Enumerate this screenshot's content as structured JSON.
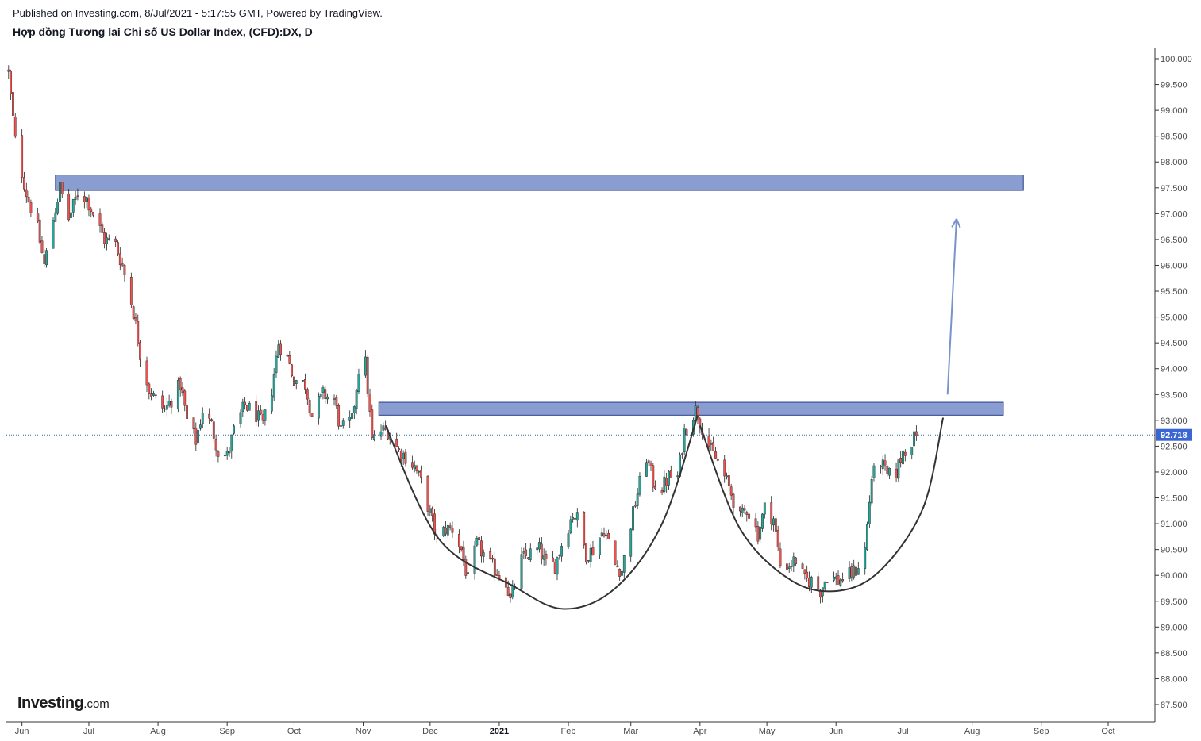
{
  "header": {
    "published": "Published on Investing.com, 8/Jul/2021 - 5:17:55 GMT, Powered by TradingView.",
    "title": "Hợp đồng Tương lai Chỉ số US Dollar Index, (CFD):DX, D"
  },
  "logo": {
    "main": "Investing",
    "suffix": ".com"
  },
  "colors": {
    "up": "#26a69a",
    "down": "#ef5350",
    "zone_fill": "#8a9dd0",
    "zone_stroke": "#2b3a8a",
    "arrow": "#7a93cc",
    "curve": "#333333",
    "price_badge": "#3a66d4",
    "price_line": "#2b6fa3",
    "axis": "#333333"
  },
  "chart_data": {
    "type": "candlestick",
    "title": "Hợp đồng Tương lai Chỉ số US Dollar Index, (CFD):DX, D",
    "x_labels": [
      {
        "label": "Jun",
        "date": "2020-06-01"
      },
      {
        "label": "Jul",
        "date": "2020-07-01"
      },
      {
        "label": "Aug",
        "date": "2020-08-01"
      },
      {
        "label": "Sep",
        "date": "2020-09-01"
      },
      {
        "label": "Oct",
        "date": "2020-10-01"
      },
      {
        "label": "Nov",
        "date": "2020-11-01"
      },
      {
        "label": "Dec",
        "date": "2020-12-01"
      },
      {
        "label": "2021",
        "date": "2021-01-01",
        "bold": true
      },
      {
        "label": "Feb",
        "date": "2021-02-01"
      },
      {
        "label": "Mar",
        "date": "2021-03-01"
      },
      {
        "label": "Apr",
        "date": "2021-04-01"
      },
      {
        "label": "May",
        "date": "2021-05-01"
      },
      {
        "label": "Jun",
        "date": "2021-06-01"
      },
      {
        "label": "Jul",
        "date": "2021-07-01"
      },
      {
        "label": "Aug",
        "date": "2021-08-01"
      },
      {
        "label": "Sep",
        "date": "2021-09-01"
      },
      {
        "label": "Oct",
        "date": "2021-10-01"
      }
    ],
    "x_range": [
      "2020-05-25",
      "2021-10-22"
    ],
    "y_ticks": [
      "100.000",
      "99.500",
      "99.000",
      "98.500",
      "98.000",
      "97.500",
      "97.000",
      "96.500",
      "96.000",
      "95.500",
      "95.000",
      "94.500",
      "94.000",
      "93.500",
      "93.000",
      "92.500",
      "92.000",
      "91.500",
      "91.000",
      "90.500",
      "90.000",
      "89.500",
      "89.000",
      "88.500",
      "88.000",
      "87.500"
    ],
    "y_range": [
      87.2,
      100.15
    ],
    "last_price": "92.718",
    "last_price_value": 92.718,
    "series_close": [
      [
        "2020-05-26",
        99.7
      ],
      [
        "2020-05-29",
        98.4
      ],
      [
        "2020-06-03",
        97.4
      ],
      [
        "2020-06-08",
        96.7
      ],
      [
        "2020-06-11",
        96.0
      ],
      [
        "2020-06-15",
        96.9
      ],
      [
        "2020-06-18",
        97.5
      ],
      [
        "2020-06-22",
        96.9
      ],
      [
        "2020-06-26",
        97.4
      ],
      [
        "2020-06-30",
        97.3
      ],
      [
        "2020-07-03",
        97.0
      ],
      [
        "2020-07-08",
        96.5
      ],
      [
        "2020-07-13",
        96.4
      ],
      [
        "2020-07-16",
        96.0
      ],
      [
        "2020-07-21",
        95.1
      ],
      [
        "2020-07-24",
        94.3
      ],
      [
        "2020-07-28",
        93.6
      ],
      [
        "2020-07-31",
        93.4
      ],
      [
        "2020-08-04",
        93.2
      ],
      [
        "2020-08-07",
        93.4
      ],
      [
        "2020-08-11",
        93.7
      ],
      [
        "2020-08-14",
        93.0
      ],
      [
        "2020-08-18",
        92.6
      ],
      [
        "2020-08-21",
        93.2
      ],
      [
        "2020-08-25",
        92.9
      ],
      [
        "2020-08-28",
        92.4
      ],
      [
        "2020-09-01",
        92.3
      ],
      [
        "2020-09-04",
        92.8
      ],
      [
        "2020-09-09",
        93.3
      ],
      [
        "2020-09-14",
        93.1
      ],
      [
        "2020-09-17",
        92.9
      ],
      [
        "2020-09-21",
        93.6
      ],
      [
        "2020-09-24",
        94.5
      ],
      [
        "2020-09-28",
        94.2
      ],
      [
        "2020-10-01",
        93.8
      ],
      [
        "2020-10-06",
        93.7
      ],
      [
        "2020-10-09",
        93.1
      ],
      [
        "2020-10-14",
        93.5
      ],
      [
        "2020-10-19",
        93.4
      ],
      [
        "2020-10-22",
        92.8
      ],
      [
        "2020-10-27",
        93.0
      ],
      [
        "2020-10-30",
        94.0
      ],
      [
        "2020-11-02",
        94.1
      ],
      [
        "2020-11-05",
        92.6
      ],
      [
        "2020-11-09",
        92.8
      ],
      [
        "2020-11-12",
        92.8
      ],
      [
        "2020-11-17",
        92.4
      ],
      [
        "2020-11-20",
        92.3
      ],
      [
        "2020-11-24",
        92.1
      ],
      [
        "2020-11-27",
        91.8
      ],
      [
        "2020-12-01",
        91.2
      ],
      [
        "2020-12-04",
        90.7
      ],
      [
        "2020-12-08",
        90.9
      ],
      [
        "2020-12-11",
        90.9
      ],
      [
        "2020-12-15",
        90.5
      ],
      [
        "2020-12-18",
        89.9
      ],
      [
        "2020-12-22",
        90.6
      ],
      [
        "2020-12-28",
        90.2
      ],
      [
        "2021-01-04",
        89.9
      ],
      [
        "2021-01-06",
        89.5
      ],
      [
        "2021-01-11",
        90.3
      ],
      [
        "2021-01-14",
        90.4
      ],
      [
        "2021-01-19",
        90.5
      ],
      [
        "2021-01-22",
        90.2
      ],
      [
        "2021-01-26",
        90.2
      ],
      [
        "2021-01-29",
        90.6
      ],
      [
        "2021-02-03",
        91.2
      ],
      [
        "2021-02-05",
        91.1
      ],
      [
        "2021-02-09",
        90.4
      ],
      [
        "2021-02-12",
        90.5
      ],
      [
        "2021-02-17",
        90.9
      ],
      [
        "2021-02-22",
        90.2
      ],
      [
        "2021-02-25",
        90.1
      ],
      [
        "2021-03-01",
        91.0
      ],
      [
        "2021-03-04",
        91.6
      ],
      [
        "2021-03-08",
        92.3
      ],
      [
        "2021-03-11",
        91.8
      ],
      [
        "2021-03-15",
        91.7
      ],
      [
        "2021-03-18",
        91.9
      ],
      [
        "2021-03-22",
        91.9
      ],
      [
        "2021-03-25",
        92.8
      ],
      [
        "2021-03-30",
        93.2
      ],
      [
        "2021-04-01",
        93.0
      ],
      [
        "2021-04-06",
        92.4
      ],
      [
        "2021-04-09",
        92.2
      ],
      [
        "2021-04-14",
        91.7
      ],
      [
        "2021-04-19",
        91.1
      ],
      [
        "2021-04-22",
        91.3
      ],
      [
        "2021-04-27",
        90.8
      ],
      [
        "2021-04-30",
        91.3
      ],
      [
        "2021-05-04",
        91.1
      ],
      [
        "2021-05-07",
        90.2
      ],
      [
        "2021-05-11",
        90.2
      ],
      [
        "2021-05-14",
        90.3
      ],
      [
        "2021-05-18",
        89.9
      ],
      [
        "2021-05-21",
        89.9
      ],
      [
        "2021-05-25",
        89.7
      ],
      [
        "2021-05-28",
        90.0
      ],
      [
        "2021-06-02",
        89.9
      ],
      [
        "2021-06-07",
        90.0
      ],
      [
        "2021-06-10",
        90.1
      ],
      [
        "2021-06-14",
        90.5
      ],
      [
        "2021-06-17",
        91.9
      ],
      [
        "2021-06-21",
        92.2
      ],
      [
        "2021-06-24",
        91.9
      ],
      [
        "2021-06-28",
        92.0
      ],
      [
        "2021-07-01",
        92.4
      ],
      [
        "2021-07-05",
        92.6
      ],
      [
        "2021-07-07",
        92.7
      ]
    ],
    "zones": [
      {
        "name": "upper-resistance-zone",
        "from_date": "2020-06-16",
        "to_date": "2021-08-24",
        "low": 97.45,
        "high": 97.75
      },
      {
        "name": "lower-resistance-zone",
        "from_date": "2020-11-08",
        "to_date": "2021-08-15",
        "low": 93.1,
        "high": 93.35
      }
    ],
    "arrow": {
      "from": [
        "2021-07-21",
        93.5
      ],
      "to": [
        "2021-07-25",
        96.9
      ]
    },
    "curves": [
      {
        "name": "left-cup-curve",
        "points": [
          [
            "2020-11-11",
            92.9
          ],
          [
            "2020-12-05",
            90.7
          ],
          [
            "2021-01-07",
            89.8
          ],
          [
            "2021-01-30",
            89.35
          ],
          [
            "2021-02-22",
            89.75
          ],
          [
            "2021-03-15",
            91.0
          ],
          [
            "2021-03-31",
            93.1
          ]
        ]
      },
      {
        "name": "right-cup-curve",
        "points": [
          [
            "2021-04-01",
            92.9
          ],
          [
            "2021-04-19",
            90.9
          ],
          [
            "2021-05-12",
            89.9
          ],
          [
            "2021-06-02",
            89.7
          ],
          [
            "2021-06-21",
            90.1
          ],
          [
            "2021-07-10",
            91.3
          ],
          [
            "2021-07-19",
            93.05
          ]
        ]
      }
    ]
  }
}
